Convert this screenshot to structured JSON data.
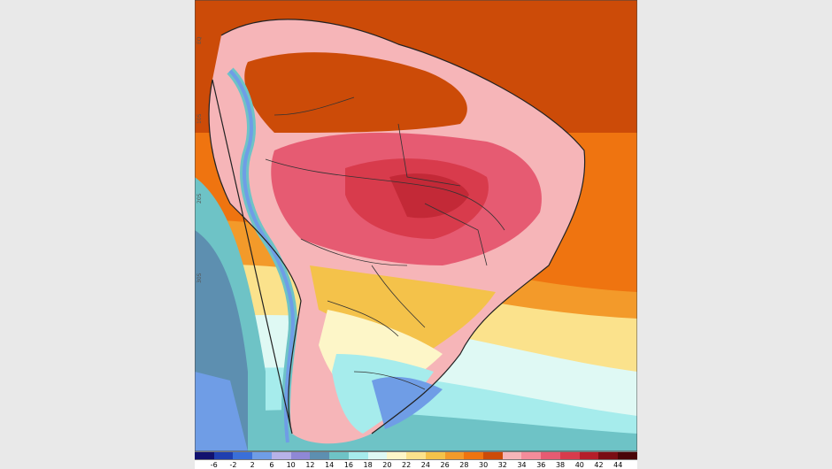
{
  "colorbar": {
    "colors": [
      "#11116e",
      "#1f3fb0",
      "#3a6fd8",
      "#6f9de6",
      "#b7b2e8",
      "#8f88d6",
      "#5d8fb0",
      "#6ec3c6",
      "#a6ecec",
      "#dff9f4",
      "#fdf6c8",
      "#fbe28c",
      "#f4c24a",
      "#f39a2a",
      "#ef7410",
      "#cc4b08",
      "#f6b5b8",
      "#f48c9a",
      "#e65b72",
      "#d83b4c",
      "#b51e2a",
      "#7a0d14",
      "#4a0508"
    ],
    "ticks": [
      "-6",
      "-2",
      "2",
      "6",
      "10",
      "12",
      "14",
      "16",
      "18",
      "20",
      "22",
      "24",
      "26",
      "28",
      "30",
      "32",
      "34",
      "36",
      "38",
      "40",
      "42",
      "44"
    ]
  },
  "axis": {
    "lat_labels": [
      "EQ",
      "10S",
      "20S",
      "30S"
    ]
  }
}
